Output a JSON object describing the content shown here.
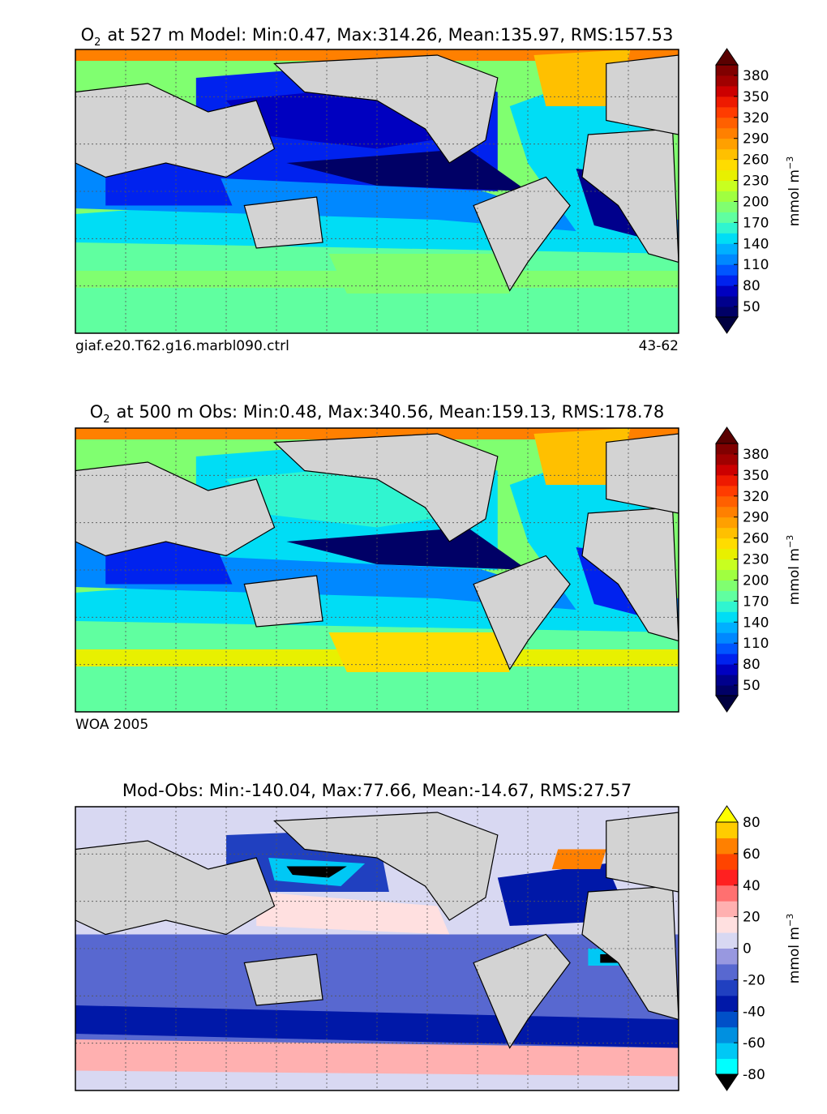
{
  "chart_data": [
    {
      "type": "heatmap",
      "title": "O₂ at 527 m Model: Min:0.47, Max:314.26, Mean:135.97, RMS:157.53",
      "title_parts": {
        "species": "O",
        "sub": "2",
        "rest": "at 527 m Model: Min:0.47, Max:314.26, Mean:135.97, RMS:157.53"
      },
      "caption_left": "giaf.e20.T62.g16.marbl090.ctrl",
      "caption_right": "43-62",
      "colorbar_label": "mmol m",
      "colorbar_exponent": "−3",
      "colorbar_ticks": [
        "50",
        "80",
        "110",
        "140",
        "170",
        "200",
        "230",
        "260",
        "290",
        "320",
        "350",
        "380"
      ],
      "colorbar_levels": [
        35,
        50,
        65,
        80,
        95,
        110,
        125,
        140,
        155,
        170,
        185,
        200,
        215,
        230,
        245,
        260,
        275,
        290,
        305,
        320,
        335,
        350,
        365,
        380,
        395
      ],
      "colorbar_extend": "both",
      "colormap": [
        "#000066",
        "#00008c",
        "#0000c0",
        "#0022ee",
        "#0055ff",
        "#0088ff",
        "#00b0ff",
        "#00ddf5",
        "#30f5d0",
        "#60ffa0",
        "#80ff70",
        "#a0ff40",
        "#c8ff20",
        "#e8f000",
        "#ffdc00",
        "#ffc000",
        "#ffa000",
        "#ff8000",
        "#ff6000",
        "#ff3c00",
        "#ee1a00",
        "#cc0000",
        "#a00000",
        "#800000"
      ],
      "colormap_under": "#000040",
      "colormap_over": "#5a0000",
      "stats": {
        "min": 0.47,
        "max": 314.26,
        "mean": 135.97,
        "rms": 157.53
      },
      "depth_m": 527,
      "land_color": "#d3d3d3",
      "grid": "dotted"
    },
    {
      "type": "heatmap",
      "title": "O₂ at 500 m Obs: Min:0.48, Max:340.56, Mean:159.13, RMS:178.78",
      "title_parts": {
        "species": "O",
        "sub": "2",
        "rest": "at 500 m Obs: Min:0.48, Max:340.56, Mean:159.13, RMS:178.78"
      },
      "caption_left": "WOA 2005",
      "caption_right": "",
      "colorbar_label": "mmol m",
      "colorbar_exponent": "−3",
      "colorbar_ticks": [
        "50",
        "80",
        "110",
        "140",
        "170",
        "200",
        "230",
        "260",
        "290",
        "320",
        "350",
        "380"
      ],
      "colorbar_levels": [
        35,
        50,
        65,
        80,
        95,
        110,
        125,
        140,
        155,
        170,
        185,
        200,
        215,
        230,
        245,
        260,
        275,
        290,
        305,
        320,
        335,
        350,
        365,
        380,
        395
      ],
      "colorbar_extend": "both",
      "colormap": [
        "#000066",
        "#00008c",
        "#0000c0",
        "#0022ee",
        "#0055ff",
        "#0088ff",
        "#00b0ff",
        "#00ddf5",
        "#30f5d0",
        "#60ffa0",
        "#80ff70",
        "#a0ff40",
        "#c8ff20",
        "#e8f000",
        "#ffdc00",
        "#ffc000",
        "#ffa000",
        "#ff8000",
        "#ff6000",
        "#ff3c00",
        "#ee1a00",
        "#cc0000",
        "#a00000",
        "#800000"
      ],
      "colormap_under": "#000040",
      "colormap_over": "#5a0000",
      "stats": {
        "min": 0.48,
        "max": 340.56,
        "mean": 159.13,
        "rms": 178.78
      },
      "depth_m": 500,
      "land_color": "#d3d3d3",
      "grid": "dotted"
    },
    {
      "type": "heatmap",
      "title": "Mod-Obs: Min:-140.04, Max:77.66, Mean:-14.67, RMS:27.57",
      "title_parts": {
        "species": "",
        "sub": "",
        "rest": "Mod-Obs: Min:-140.04, Max:77.66, Mean:-14.67, RMS:27.57"
      },
      "caption_left": "",
      "caption_right": "",
      "colorbar_label": "mmol m",
      "colorbar_exponent": "−3",
      "colorbar_ticks": [
        "-80",
        "-60",
        "-40",
        "-20",
        "0",
        "20",
        "40",
        "60",
        "80"
      ],
      "colorbar_levels": [
        -80,
        -70,
        -60,
        -50,
        -40,
        -30,
        -20,
        -10,
        0,
        10,
        20,
        30,
        40,
        50,
        60,
        70,
        80
      ],
      "colorbar_extend": "both",
      "colormap": [
        "#00ffff",
        "#00c8f5",
        "#0090e0",
        "#0050c8",
        "#0018a8",
        "#2040c0",
        "#5868d0",
        "#9898e0",
        "#d8d8f2",
        "#ffe0e0",
        "#ffb0b0",
        "#ff7070",
        "#ff2020",
        "#ff4400",
        "#ff8000",
        "#ffcc00"
      ],
      "colormap_under": "#000000",
      "colormap_over": "#ffff00",
      "stats": {
        "min": -140.04,
        "max": 77.66,
        "mean": -14.67,
        "rms": 27.57
      },
      "land_color": "#d3d3d3",
      "grid": "dotted"
    }
  ]
}
